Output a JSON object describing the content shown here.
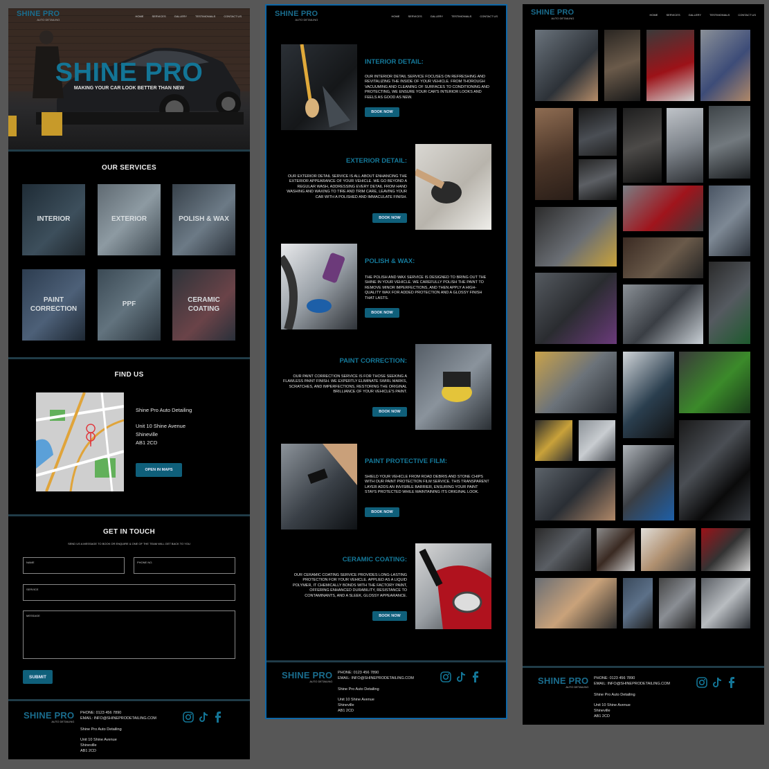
{
  "brand": {
    "name": "SHINE PRO",
    "sub": "AUTO DETAILING",
    "tagline": "MAKING YOUR CAR LOOK BETTER THAN NEW",
    "accent": "#137596"
  },
  "nav": {
    "items": [
      "HOME",
      "SERVICES",
      "GALLERY",
      "TESTIMONIALS",
      "CONTACT US"
    ]
  },
  "services": {
    "title": "OUR SERVICES",
    "items": [
      "INTERIOR",
      "EXTERIOR",
      "POLISH & WAX",
      "PAINT\nCORRECTION",
      "PPF",
      "CERAMIC\nCOATING"
    ]
  },
  "find": {
    "title": "FIND US",
    "company": "Shine Pro Auto Detailing",
    "address_line1": "Unit 10 Shine Avenue",
    "address_line2": "Shineville",
    "address_line3": "AB1 2CD",
    "button": "OPEN IN MAPS"
  },
  "contact": {
    "title": "GET IN TOUCH",
    "subtitle": "SEND US A MESSAGE TO BOOK OR ENQUIRE & ONE OF THE TEAM WILL GET BACK TO YOU",
    "name_label": "NAME",
    "phone_label": "PHONE NO.",
    "service_label": "SERVICE",
    "message_label": "MESSAGE",
    "submit": "SUBMIT"
  },
  "footer": {
    "phone": "PHONE: 0123 456 7890",
    "email": "EMAIL: INFO@SHINEPRODETAILING.COM",
    "company": "Shine Pro Auto Detailing",
    "address_line1": "Unit 10 Shine Avenue",
    "address_line2": "Shineville",
    "address_line3": "AB1 2CD",
    "icons": [
      "instagram-icon",
      "tiktok-icon",
      "facebook-icon"
    ]
  },
  "details": [
    {
      "title": "INTERIOR DETAIL:",
      "text": "OUR INTERIOR DETAIL SERVICE FOCUSES ON REFRESHING AND REVITALIZING THE INSIDE OF YOUR VEHICLE. FROM THOROUGH VACUUMING AND CLEANING OF SURFACES TO CONDITIONING AND PROTECTING, WE ENSURE YOUR CAR'S INTERIOR LOOKS AND FEELS AS GOOD AS NEW.",
      "button": "BOOK NOW"
    },
    {
      "title": "EXTERIOR DETAIL:",
      "text": "OUR EXTERIOR DETAIL SERVICE IS ALL ABOUT ENHANCING THE EXTERIOR APPEARANCE OF YOUR VEHICLE. WE GO BEYOND A REGULAR WASH, ADDRESSING EVERY DETAIL FROM HAND WASHING AND WAXING TO TIRE AND TRIM CARE, LEAVING YOUR CAR WITH A POLISHED AND IMMACULATE FINISH.",
      "button": "BOOK NOW"
    },
    {
      "title": "POLISH & WAX:",
      "text": "THE POLISH AND WAX SERVICE IS DESIGNED TO BRING OUT THE SHINE IN YOUR VEHICLE. WE CAREFULLY POLISH THE PAINT TO REMOVE MINOR IMPERFECTIONS, AND THEN APPLY A HIGH-QUALITY WAX FOR ADDED PROTECTION AND A GLOSSY FINISH THAT LASTS.",
      "button": "BOOK NOW"
    },
    {
      "title": "PAINT CORRECTION:",
      "text": "OUR PAINT CORRECTION SERVICE IS FOR THOSE SEEKING A FLAWLESS PAINT FINISH. WE EXPERTLY ELIMINATE SWIRL MARKS, SCRATCHES, AND IMPERFECTIONS, RESTORING THE ORIGINAL BRILLIANCE OF YOUR VEHICLE'S PAINT.",
      "button": "BOOK NOW"
    },
    {
      "title": "PAINT PROTECTIVE FILM:",
      "text": "SHIELD YOUR VEHICLE FROM ROAD DEBRIS AND STONE CHIPS WITH OUR PAINT PROTECTION FILM SERVICE. THIS TRANSPARENT LAYER ADDS AN INVISIBLE BARRIER, ENSURING YOUR PAINT STAYS PROTECTED WHILE MAINTAINING ITS ORIGINAL LOOK.",
      "button": "BOOK NOW"
    },
    {
      "title": "CERAMIC COATING:",
      "text": "OUR CERAMIC COATING SERVICE PROVIDES LONG-LASTING PROTECTION FOR YOUR VEHICLE. APPLIED AS A LIQUID POLYMER, IT CHEMICALLY BONDS WITH THE FACTORY PAINT, OFFERING ENHANCED DURABILITY, RESISTANCE TO CONTAMINANTS, AND A SLEEK, GLOSSY APPEARANCE.",
      "button": "BOOK NOW"
    }
  ]
}
